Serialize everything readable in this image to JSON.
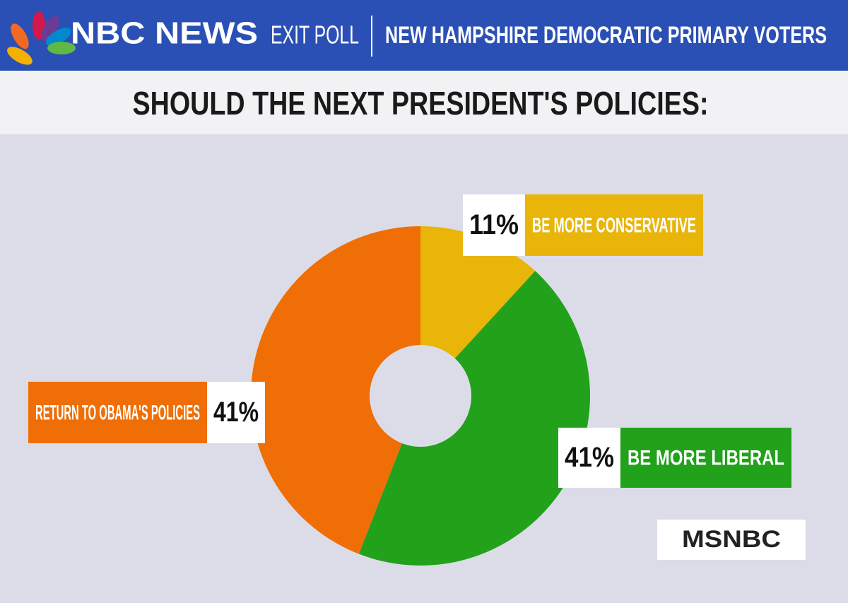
{
  "header": {
    "brand": "NBC NEWS",
    "section": "EXIT POLL",
    "subtitle": "NEW HAMPSHIRE DEMOCRATIC PRIMARY VOTERS"
  },
  "chart_data": {
    "type": "pie",
    "title": "SHOULD THE NEXT PRESIDENT'S POLICIES:",
    "categories": [
      "BE MORE CONSERVATIVE",
      "BE MORE LIBERAL",
      "RETURN TO OBAMA'S POLICIES"
    ],
    "values": [
      11,
      41,
      41
    ],
    "value_labels": [
      "11%",
      "41%",
      "41%"
    ],
    "colors": [
      "#e9b508",
      "#22a11b",
      "#ef6e05"
    ]
  },
  "footer": {
    "logo": "MSNBC"
  }
}
